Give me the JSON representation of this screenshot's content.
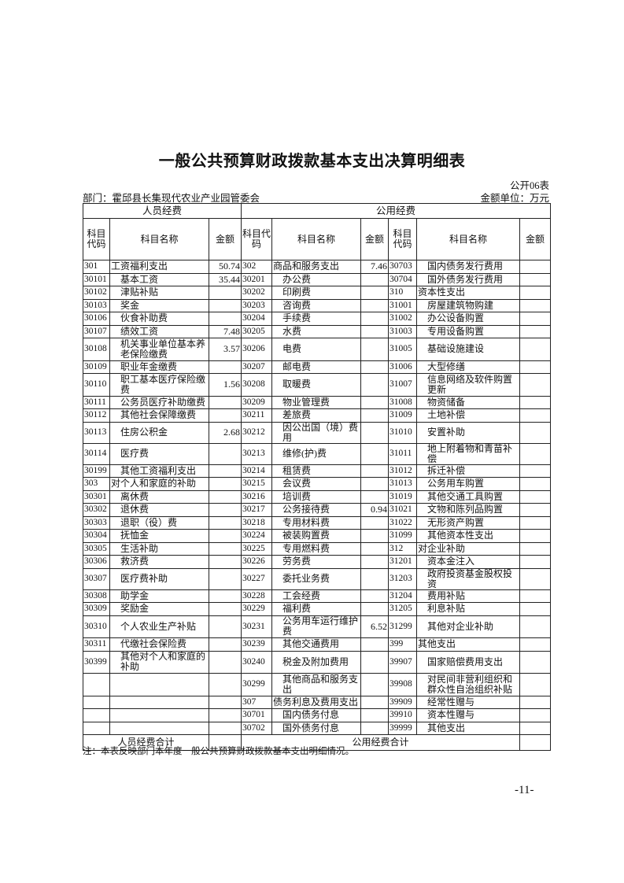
{
  "title": "一般公共预算财政拨款基本支出决算明细表",
  "form_number": "公开06表",
  "department": "部门：霍邱县长集现代农业产业园管委会",
  "unit": "金额单位：万元",
  "table": {
    "group_headers": [
      "人员经费",
      "公用经费"
    ],
    "column_headers": [
      "科目代码",
      "科目名称",
      "金额",
      "科目代码",
      "科目名称",
      "金额",
      "科目代码",
      "科目名称",
      "金额"
    ],
    "rows": [
      [
        "301",
        "工资福利支出",
        "50.74",
        "302",
        "商品和服务支出",
        "7.46",
        "30703",
        "国内债务发行费用",
        ""
      ],
      [
        "30101",
        "基本工资",
        "35.44",
        "30201",
        "办公费",
        "",
        "30704",
        "国外债务发行费用",
        ""
      ],
      [
        "30102",
        "津贴补贴",
        "",
        "30202",
        "印刷费",
        "",
        "310",
        "资本性支出",
        ""
      ],
      [
        "30103",
        "奖金",
        "",
        "30203",
        "咨询费",
        "",
        "31001",
        "房屋建筑物购建",
        ""
      ],
      [
        "30106",
        "伙食补助费",
        "",
        "30204",
        "手续费",
        "",
        "31002",
        "办公设备购置",
        ""
      ],
      [
        "30107",
        "绩效工资",
        "7.48",
        "30205",
        "水费",
        "",
        "31003",
        "专用设备购置",
        ""
      ],
      [
        "30108",
        "机关事业单位基本养老保险缴费",
        "3.57",
        "30206",
        "电费",
        "",
        "31005",
        "基础设施建设",
        ""
      ],
      [
        "30109",
        "职业年金缴费",
        "",
        "30207",
        "邮电费",
        "",
        "31006",
        "大型修缮",
        ""
      ],
      [
        "30110",
        "职工基本医疗保险缴费",
        "1.56",
        "30208",
        "取暖费",
        "",
        "31007",
        "信息网络及软件购置更新",
        ""
      ],
      [
        "30111",
        "公务员医疗补助缴费",
        "",
        "30209",
        "物业管理费",
        "",
        "31008",
        "物资储备",
        ""
      ],
      [
        "30112",
        "其他社会保障缴费",
        "",
        "30211",
        "差旅费",
        "",
        "31009",
        "土地补偿",
        ""
      ],
      [
        "30113",
        "住房公积金",
        "2.68",
        "30212",
        "因公出国（境）费用",
        "",
        "31010",
        "安置补助",
        ""
      ],
      [
        "30114",
        "医疗费",
        "",
        "30213",
        "维修(护)费",
        "",
        "31011",
        "地上附着物和青苗补偿",
        ""
      ],
      [
        "30199",
        "其他工资福利支出",
        "",
        "30214",
        "租赁费",
        "",
        "31012",
        "拆迁补偿",
        ""
      ],
      [
        "303",
        "对个人和家庭的补助",
        "",
        "30215",
        "会议费",
        "",
        "31013",
        "公务用车购置",
        ""
      ],
      [
        "30301",
        "离休费",
        "",
        "30216",
        "培训费",
        "",
        "31019",
        "其他交通工具购置",
        ""
      ],
      [
        "30302",
        "退休费",
        "",
        "30217",
        "公务接待费",
        "0.94",
        "31021",
        "文物和陈列品购置",
        ""
      ],
      [
        "30303",
        "退职（役）费",
        "",
        "30218",
        "专用材料费",
        "",
        "31022",
        "无形资产购置",
        ""
      ],
      [
        "30304",
        "抚恤金",
        "",
        "30224",
        "被装购置费",
        "",
        "31099",
        "其他资本性支出",
        ""
      ],
      [
        "30305",
        "生活补助",
        "",
        "30225",
        "专用燃料费",
        "",
        "312",
        "对企业补助",
        ""
      ],
      [
        "30306",
        "救济费",
        "",
        "30226",
        "劳务费",
        "",
        "31201",
        "资本金注入",
        ""
      ],
      [
        "30307",
        "医疗费补助",
        "",
        "30227",
        "委托业务费",
        "",
        "31203",
        "政府投资基金股权投资",
        ""
      ],
      [
        "30308",
        "助学金",
        "",
        "30228",
        "工会经费",
        "",
        "31204",
        "费用补贴",
        ""
      ],
      [
        "30309",
        "奖励金",
        "",
        "30229",
        "福利费",
        "",
        "31205",
        "利息补贴",
        ""
      ],
      [
        "30310",
        "个人农业生产补贴",
        "",
        "30231",
        "公务用车运行维护费",
        "6.52",
        "31299",
        "其他对企业补助",
        ""
      ],
      [
        "30311",
        "代缴社会保险费",
        "",
        "30239",
        "其他交通费用",
        "",
        "399",
        "其他支出",
        ""
      ],
      [
        "30399",
        "其他对个人和家庭的补助",
        "",
        "30240",
        "税金及附加费用",
        "",
        "39907",
        "国家赔偿费用支出",
        ""
      ],
      [
        "",
        "",
        "",
        "30299",
        "其他商品和服务支出",
        "",
        "39908",
        "对民间非营利组织和群众性自治组织补贴",
        ""
      ],
      [
        "",
        "",
        "",
        "307",
        "债务利息及费用支出",
        "",
        "39909",
        "经常性赠与",
        ""
      ],
      [
        "",
        "",
        "",
        "30701",
        "国内债务付息",
        "",
        "39910",
        "资本性赠与",
        ""
      ],
      [
        "",
        "",
        "",
        "30702",
        "国外债务付息",
        "",
        "39999",
        "其他支出",
        ""
      ]
    ],
    "totals": {
      "personnel_label": "人员经费合计",
      "personnel_amount": "",
      "public_label": "公用经费合计",
      "public_amount": ""
    }
  },
  "note": "注：本表反映部门本年度一般公共预算财政拨款基本支出明细情况。",
  "page_number": "-11-"
}
